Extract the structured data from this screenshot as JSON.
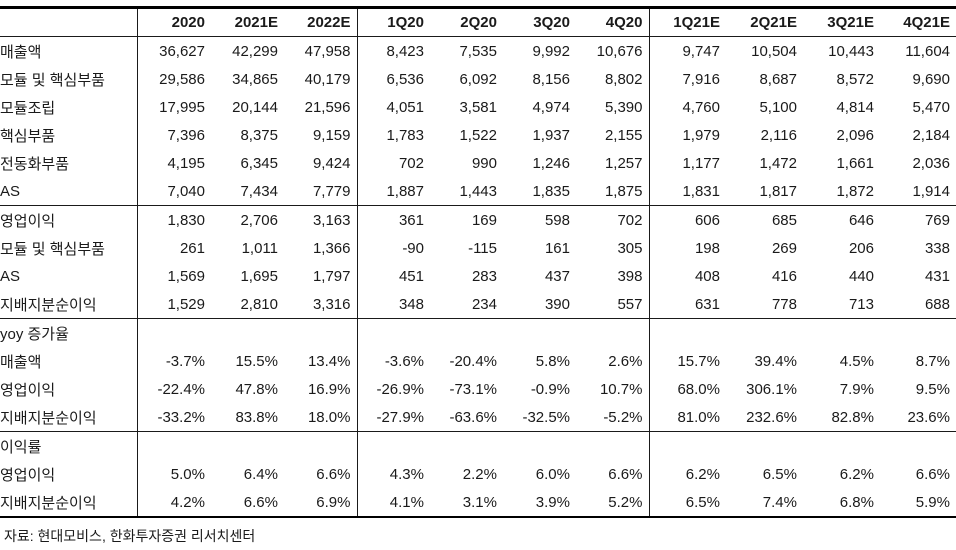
{
  "table": {
    "columns": [
      "2020",
      "2021E",
      "2022E",
      "1Q20",
      "2Q20",
      "3Q20",
      "4Q20",
      "1Q21E",
      "2Q21E",
      "3Q21E",
      "4Q21E"
    ],
    "column_group_starts": [
      0,
      3,
      7
    ],
    "rows": [
      {
        "label": "매출액",
        "indent": 0,
        "section_end": false,
        "values": [
          "36,627",
          "42,299",
          "47,958",
          "8,423",
          "7,535",
          "9,992",
          "10,676",
          "9,747",
          "10,504",
          "10,443",
          "11,604"
        ]
      },
      {
        "label": "모듈 및 핵심부품",
        "indent": 1,
        "section_end": false,
        "values": [
          "29,586",
          "34,865",
          "40,179",
          "6,536",
          "6,092",
          "8,156",
          "8,802",
          "7,916",
          "8,687",
          "8,572",
          "9,690"
        ]
      },
      {
        "label": "모듈조립",
        "indent": 2,
        "section_end": false,
        "values": [
          "17,995",
          "20,144",
          "21,596",
          "4,051",
          "3,581",
          "4,974",
          "5,390",
          "4,760",
          "5,100",
          "4,814",
          "5,470"
        ]
      },
      {
        "label": "핵심부품",
        "indent": 2,
        "section_end": false,
        "values": [
          "7,396",
          "8,375",
          "9,159",
          "1,783",
          "1,522",
          "1,937",
          "2,155",
          "1,979",
          "2,116",
          "2,096",
          "2,184"
        ]
      },
      {
        "label": "전동화부품",
        "indent": 2,
        "section_end": false,
        "values": [
          "4,195",
          "6,345",
          "9,424",
          "702",
          "990",
          "1,246",
          "1,257",
          "1,177",
          "1,472",
          "1,661",
          "2,036"
        ]
      },
      {
        "label": "AS",
        "indent": 1,
        "section_end": true,
        "values": [
          "7,040",
          "7,434",
          "7,779",
          "1,887",
          "1,443",
          "1,835",
          "1,875",
          "1,831",
          "1,817",
          "1,872",
          "1,914"
        ]
      },
      {
        "label": "영업이익",
        "indent": 0,
        "section_end": false,
        "values": [
          "1,830",
          "2,706",
          "3,163",
          "361",
          "169",
          "598",
          "702",
          "606",
          "685",
          "646",
          "769"
        ]
      },
      {
        "label": "모듈 및 핵심부품",
        "indent": 1,
        "section_end": false,
        "values": [
          "261",
          "1,011",
          "1,366",
          "-90",
          "-115",
          "161",
          "305",
          "198",
          "269",
          "206",
          "338"
        ]
      },
      {
        "label": "AS",
        "indent": 1,
        "section_end": false,
        "values": [
          "1,569",
          "1,695",
          "1,797",
          "451",
          "283",
          "437",
          "398",
          "408",
          "416",
          "440",
          "431"
        ]
      },
      {
        "label": "지배지분순이익",
        "indent": 0,
        "section_end": true,
        "values": [
          "1,529",
          "2,810",
          "3,316",
          "348",
          "234",
          "390",
          "557",
          "631",
          "778",
          "713",
          "688"
        ]
      },
      {
        "label": "yoy 증가율",
        "indent": 0,
        "section_end": false,
        "values": [
          "",
          "",
          "",
          "",
          "",
          "",
          "",
          "",
          "",
          "",
          ""
        ]
      },
      {
        "label": "매출액",
        "indent": 1,
        "section_end": false,
        "values": [
          "-3.7%",
          "15.5%",
          "13.4%",
          "-3.6%",
          "-20.4%",
          "5.8%",
          "2.6%",
          "15.7%",
          "39.4%",
          "4.5%",
          "8.7%"
        ]
      },
      {
        "label": "영업이익",
        "indent": 1,
        "section_end": false,
        "values": [
          "-22.4%",
          "47.8%",
          "16.9%",
          "-26.9%",
          "-73.1%",
          "-0.9%",
          "10.7%",
          "68.0%",
          "306.1%",
          "7.9%",
          "9.5%"
        ]
      },
      {
        "label": "지배지분순이익",
        "indent": 1,
        "section_end": true,
        "values": [
          "-33.2%",
          "83.8%",
          "18.0%",
          "-27.9%",
          "-63.6%",
          "-32.5%",
          "-5.2%",
          "81.0%",
          "232.6%",
          "82.8%",
          "23.6%"
        ]
      },
      {
        "label": "이익률",
        "indent": 0,
        "section_end": false,
        "values": [
          "",
          "",
          "",
          "",
          "",
          "",
          "",
          "",
          "",
          "",
          ""
        ]
      },
      {
        "label": "영업이익",
        "indent": 1,
        "section_end": false,
        "values": [
          "5.0%",
          "6.4%",
          "6.6%",
          "4.3%",
          "2.2%",
          "6.0%",
          "6.6%",
          "6.2%",
          "6.5%",
          "6.2%",
          "6.6%"
        ]
      },
      {
        "label": "지배지분순이익",
        "indent": 1,
        "section_end": false,
        "values": [
          "4.2%",
          "6.6%",
          "6.9%",
          "4.1%",
          "3.1%",
          "3.9%",
          "5.2%",
          "6.5%",
          "7.4%",
          "6.8%",
          "5.9%"
        ]
      }
    ]
  },
  "footer": {
    "source": "자료: 현대모비스, 한화투자증권 리서치센터"
  },
  "colors": {
    "text": "#1a1a1a",
    "border": "#000000",
    "background": "#ffffff"
  }
}
